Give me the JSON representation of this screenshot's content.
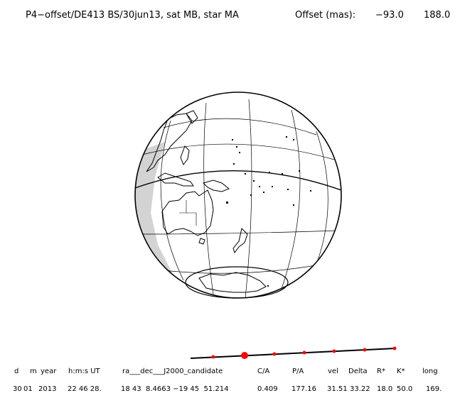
{
  "header": {
    "title": "P4−offset/DE413 BS/30jun13, sat MB, star MA",
    "offset_label": "Offset (mas):",
    "offset_x": "−93.0",
    "offset_y": "188.0"
  },
  "table": {
    "columns": [
      "d",
      "m",
      "year",
      "h:m:s UT",
      "ra___dec___J2000_candidate",
      "C/A",
      "P/A",
      "vel",
      "Delta",
      "R*",
      "K*",
      "long"
    ],
    "values": [
      "30",
      "01",
      "2013",
      "22 46 28.",
      "18 43  8.4663 −19 45  51.214",
      "0.409",
      "177.16",
      "31.51",
      "33.22",
      "18.0",
      "50.0",
      "169."
    ]
  },
  "colors": {
    "ink": "#000000",
    "shadow": "#d3d3d3",
    "track_marker": "#ff0000"
  }
}
